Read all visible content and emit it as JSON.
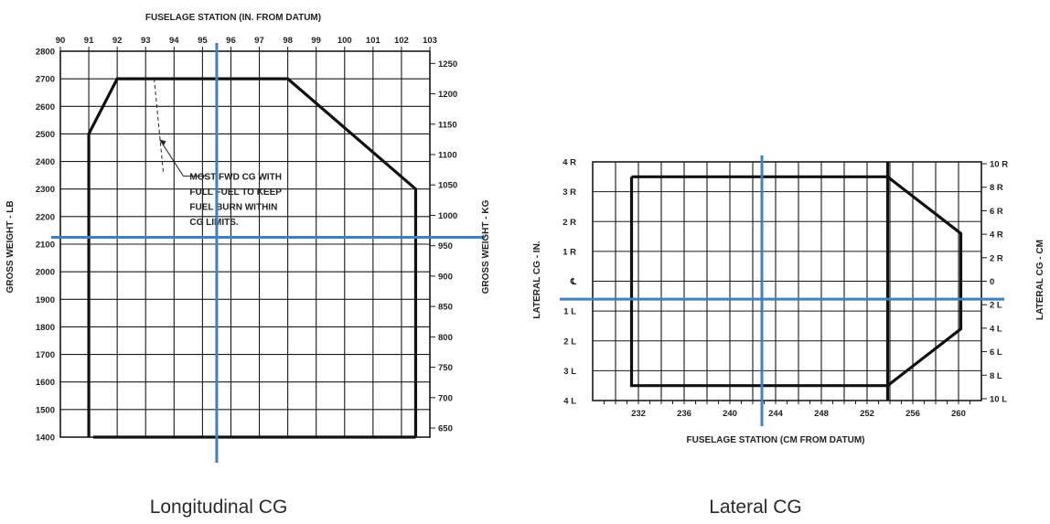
{
  "chart_data": [
    {
      "type": "line",
      "caption": "Longitudinal CG",
      "top_axis_label": "FUSELAGE STATION (IN. FROM DATUM)",
      "left_axis_label": "GROSS WEIGHT - LB",
      "right_axis_label": "GROSS WEIGHT - KG",
      "x_ticks": [
        90,
        91,
        92,
        93,
        94,
        95,
        96,
        97,
        98,
        99,
        100,
        101,
        102,
        103
      ],
      "x_tick_labels": [
        "90",
        "91",
        "92",
        "93",
        "94",
        "95",
        "96",
        "97",
        "98",
        "99",
        "100",
        "101",
        "102",
        "103"
      ],
      "xlim": [
        90,
        103
      ],
      "y_ticks": [
        1400,
        1500,
        1600,
        1700,
        1800,
        1900,
        2000,
        2100,
        2200,
        2300,
        2400,
        2500,
        2600,
        2700,
        2800
      ],
      "y_tick_labels": [
        "1400",
        "1500",
        "1600",
        "1700",
        "1800",
        "1900",
        "2000",
        "2100",
        "2200",
        "2300",
        "2400",
        "2500",
        "2600",
        "2700",
        "2800"
      ],
      "ylim": [
        1400,
        2800
      ],
      "y2_ticks": [
        650,
        700,
        750,
        800,
        850,
        900,
        950,
        1000,
        1050,
        1100,
        1150,
        1200,
        1250
      ],
      "y2_tick_labels": [
        "650",
        "700",
        "750",
        "800",
        "850",
        "900",
        "950",
        "1000",
        "1050",
        "1100",
        "1150",
        "1200",
        "1250"
      ],
      "envelope": [
        {
          "x": 91,
          "y": 1400
        },
        {
          "x": 91,
          "y": 2500
        },
        {
          "x": 92,
          "y": 2700
        },
        {
          "x": 98,
          "y": 2700
        },
        {
          "x": 102.5,
          "y": 2300
        },
        {
          "x": 102.5,
          "y": 1400
        }
      ],
      "fuel_burn_line": [
        {
          "x": 93.3,
          "y": 2700
        },
        {
          "x": 93.3,
          "y": 2360
        }
      ],
      "annotation_lines": [
        "MOST FWD CG WITH",
        "FULL FUEL TO KEEP",
        "FUEL  BURN WITHIN",
        "CG LIMITS."
      ],
      "annotation_arrow_target": {
        "x": 93.3,
        "y": 2480
      },
      "marker_x": 95.5,
      "marker_y": 2125,
      "marker_color": "#3f7fc2",
      "grid": true
    },
    {
      "type": "line",
      "caption": "Lateral CG",
      "bottom_axis_label": "FUSELAGE STATION (CM FROM DATUM)",
      "left_axis_label": "LATERAL CG - IN.",
      "right_axis_label": "LATERAL CG - CM",
      "x_ticks": [
        232,
        236,
        240,
        244,
        248,
        252,
        256,
        260
      ],
      "x_tick_labels": [
        "232",
        "236",
        "240",
        "244",
        "248",
        "252",
        "256",
        "260"
      ],
      "xlim": [
        228,
        262
      ],
      "y_ticks": [
        4,
        3,
        2,
        1,
        0,
        -1,
        -2,
        -3,
        -4
      ],
      "y_tick_labels": [
        "4 R",
        "3 R",
        "2 R",
        "1 R",
        "℄",
        "1 L",
        "2 L",
        "3 L",
        "4 L"
      ],
      "ylim": [
        -4,
        4
      ],
      "y2_values_cm": [
        10,
        8,
        6,
        4,
        2,
        0,
        -2,
        -4,
        -6,
        -8,
        -10
      ],
      "y2_tick_labels": [
        "10 R",
        "8 R",
        "6 R",
        "4 R",
        "2 R",
        "0",
        "2 L",
        "4 L",
        "6 L",
        "8 L",
        "10 L"
      ],
      "envelope": [
        {
          "x": 231.4,
          "y": 3.5
        },
        {
          "x": 253.8,
          "y": 3.5
        },
        {
          "x": 260.2,
          "y": 1.6
        },
        {
          "x": 260.2,
          "y": -1.6
        },
        {
          "x": 253.8,
          "y": -3.5
        },
        {
          "x": 231.4,
          "y": -3.5
        },
        {
          "x": 231.4,
          "y": 3.5
        }
      ],
      "divider_x": 253.8,
      "marker_x": 242.8,
      "marker_y": -0.6,
      "marker_color": "#3f7fc2",
      "grid": true
    }
  ]
}
